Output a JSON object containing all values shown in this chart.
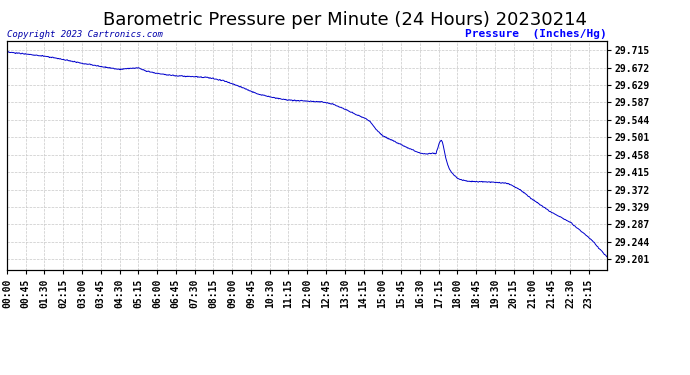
{
  "title": "Barometric Pressure per Minute (24 Hours) 20230214",
  "ylabel": "Pressure  (Inches/Hg)",
  "copyright": "Copyright 2023 Cartronics.com",
  "background_color": "#ffffff",
  "plot_bg_color": "#ffffff",
  "line_color": "#0000cc",
  "grid_color": "#c8c8c8",
  "title_color": "#000000",
  "ylabel_color": "#0000ff",
  "copyright_color": "#0000aa",
  "yticks": [
    29.201,
    29.244,
    29.287,
    29.329,
    29.372,
    29.415,
    29.458,
    29.501,
    29.544,
    29.587,
    29.629,
    29.672,
    29.715
  ],
  "ylim": [
    29.175,
    29.737
  ],
  "x_labels": [
    "00:00",
    "00:45",
    "01:30",
    "02:15",
    "03:00",
    "03:45",
    "04:30",
    "05:15",
    "06:00",
    "06:45",
    "07:30",
    "08:15",
    "09:00",
    "09:45",
    "10:30",
    "11:15",
    "12:00",
    "12:45",
    "13:30",
    "14:15",
    "15:00",
    "15:45",
    "16:30",
    "17:15",
    "18:00",
    "18:45",
    "19:30",
    "20:15",
    "21:00",
    "21:45",
    "22:30",
    "23:15"
  ],
  "num_minutes": 1440,
  "title_fontsize": 13,
  "tick_fontsize": 7,
  "key_times": [
    0,
    45,
    90,
    135,
    180,
    225,
    270,
    315,
    330,
    360,
    405,
    450,
    480,
    520,
    560,
    600,
    640,
    680,
    720,
    755,
    780,
    810,
    840,
    855,
    870,
    885,
    900,
    930,
    960,
    990,
    1005,
    1020,
    1035,
    1050,
    1065,
    1080,
    1095,
    1110,
    1140,
    1170,
    1200,
    1230,
    1260,
    1300,
    1350,
    1400,
    1440
  ],
  "key_vals": [
    29.71,
    29.706,
    29.7,
    29.692,
    29.683,
    29.675,
    29.668,
    29.672,
    29.665,
    29.658,
    29.652,
    29.65,
    29.648,
    29.64,
    29.625,
    29.608,
    29.598,
    29.592,
    29.59,
    29.588,
    29.583,
    29.57,
    29.555,
    29.55,
    29.54,
    29.52,
    29.505,
    29.49,
    29.475,
    29.462,
    29.46,
    29.462,
    29.46,
    29.442,
    29.415,
    29.4,
    29.395,
    29.392,
    29.392,
    29.39,
    29.388,
    29.372,
    29.348,
    29.32,
    29.292,
    29.25,
    29.205
  ]
}
